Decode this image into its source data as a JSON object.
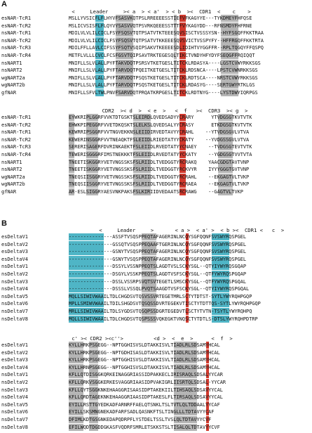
{
  "panelA": {
    "label": "A",
    "block1": {
      "header": " <     Leader     >< a  > < a'  > < b  ><  CDR1  <    c    >",
      "rows": [
        {
          "name": "esNAR-TcR1",
          "seq": "MSLLYVSICFLFLHYVFSASVKQTPSLRREEEESSTIEFVFKAGYYE---TYKDMEYFHFQSE"
        },
        {
          "name": "esNAR-TcR2",
          "seq": "MSLICVSISFLFLQYVYSASVVQTPSVRKQEEESSTTTFVYKAGYDD---RFNSMDYFHFRNE"
        },
        {
          "name": "nsNAR-TcR1",
          "seq": "MDILVLVLILCICLFSYFSQSVTQTPSATVTKTEEESQVSISCTVSSSYSN--HYFSGQFFKKTRAA"
        },
        {
          "name": "nsNAR-TcR2",
          "seq": "MDILVLVLILCICLFSYFSQSVTQTPSATVTKKEEESQVSVICTVSSPYFY--HFFRGQFFKKTRTA"
        },
        {
          "name": "nsNAR-TcR3",
          "seq": "MDILFFLLAVLCIFSSYFSQTVSQIPSAKVTKEEEESDLIDIHTVYGGFFR--RPLTQGQYFFQSPQ"
        },
        {
          "name": "nsNAR-TcR4",
          "seq": "METFLVLLLCVCLFCSFGSVTQIPSAVTRKTEGESQLTIKCTVNDYHFYDYFSEQGFFRQIQQT"
        },
        {
          "name": "nsNART1",
          "seq": "MNIFLLSLVLALLPYFTAKVDQTPSRSVTKETGESLTITCKLRDASYA----LGSTCVWYRKKSGS"
        },
        {
          "name": "nsNART2",
          "seq": "MNIFLLSLVLALLPYFTARVDQTPQEITKETGESLTITCKLRDSNCA----LPSTCVWNRKKSGS"
        },
        {
          "name": "wgNART2a",
          "seq": "MNIFLLSLVLALLPYFTARVDQTPSQSTKETGESLTITCKLRDTSCA----NRSTCVWYRKKSGS"
        },
        {
          "name": "wgNART2b",
          "seq": "MNIFLLSLVLALLPYFTARVDQTPSQSTKETGESLTITCKLRDASYG----SERTGWYRTKLGS"
        },
        {
          "name": "gfNAR",
          "seq": "MNIFLLSFVLTWLPNVFSARVDQTPRQATKRPGESLTITCKLRDTNYG----LYSTDWYIQRPGS"
        }
      ]
    },
    "block2": {
      "header": "           CDR2  >< d  >  < e  >   <  f   ><  CDR3  >< g  >",
      "rows": [
        {
          "name": "esNAR-TcR1",
          "seq": "EYWKRIPLGGRFVVKTDTGSKTSLEIRDLQVEDSADYYCRARY      YTVDGSGTKVTVTK"
        },
        {
          "name": "esNAR-TcR2",
          "seq": "EHWKPIPEGGRFVVETDKQSKTSLELKSLQVEDSALYYCRASY      ETKDGSGTKVTVTK"
        },
        {
          "name": "nsNAR-TcR1",
          "seq": "KEWRRIPSGGRFVVTNGVEKKNSLEIIDIRVEDTAVYYCRAHL    --YTVDGSGVLVTVA"
        },
        {
          "name": "nsNAR-TcR2",
          "seq": "KEWERINSGGRFVVTNEAQKTFSLEIIDLRIEDTATYYCKATY    --YVDGSSGVLVTVA"
        },
        {
          "name": "nsNAR-TcR3",
          "seq": "SERERISAGERFDVRINKAEKTFSLEIIDLRVEDTATYYCNAEY    --TVDGSGTEVTVTK"
        },
        {
          "name": "nsNAR-TcR4",
          "seq": "TEWERISGGGRFIMSTNEKKKTFSLEIIDLRVEDTATYYCKATY    --YGDGSGTVVTVTA"
        },
        {
          "name": "nsNART1",
          "seq": "TNEETISKGGRYVETVNGSSKSFSLRIIDLTVEDGGTYRCRAKQ    YAACGDGTAVTVNP"
        },
        {
          "name": "nsNART2",
          "seq": "TNEETISKGGRYVETVNGSSKSFSLRIIDLTVEDGGTYRCKVYR    IYYYGGGTGVTVNP"
        },
        {
          "name": "wgNART2a",
          "seq": "TNEQSIISGGRYVETVNGSSKSFSLRIIDLTVEDGGTYRCRAHL    --EKGAGTVLTVKP"
        },
        {
          "name": "wgNART2b",
          "seq": "TNEQSIISGGRYVETVNGSSKSFSLRIIDLTVEDGGTYRCRAEA    --EKGAGTVLTVKP"
        },
        {
          "name": "gfNAR",
          "seq": "AR-ESLSIGGRYAESVNKPAKSFSLKIRIIDVEDAATSRCRAWG    --GAGTVLTVKP"
        }
      ]
    }
  },
  "panelB": {
    "label": "B",
    "block1": {
      "header": "          <     Leader     >       < a >  < a' >  < b ><  CDR1 <   c  >",
      "rows": [
        {
          "name": "esDeltaV1",
          "seq": "---------------ASSFTVSQSPPEQTAFAGERINLNCQYSGFQQNFSVSWYRQSPGEL"
        },
        {
          "name": "esDeltaV2",
          "seq": "---------------GSSQTVSQSPPEQAAFTGERINLNCQYSGFQQNFSVSWYRQSPGEL"
        },
        {
          "name": "esDeltaV3",
          "seq": "---------------GSNYTVSQSPPEQTAFAGERINLNCQYSGFQQNFSVSWYRQSPGEL"
        },
        {
          "name": "esDeltaV4",
          "seq": "---------------GSNYTVSQSPPEQTAFAGERINLNCQYSGFQQNFSVSWYRQSPGEL"
        },
        {
          "name": "nsDeltaV1",
          "seq": "---------------DSSYLVSSNPPEQTSLAGDTVSLSCKYSGL--QTYIYWYRQSGQAP"
        },
        {
          "name": "nsDeltaV2",
          "seq": "---------------DSGYLVSSKPPEQTSLAGDTVSFSCKYSGL--QTFYWYRQSPGQAP"
        },
        {
          "name": "nsDeltaV3",
          "seq": "---------------DSSLVSSRPSVQTSVTEGETLSMSCKYSGL--QTFYWYRQSPGQAL"
        },
        {
          "name": "nsDeltaV4",
          "seq": "---------------DSSSLVSSQLPVQTSAAGDTVSFSCKYSGL--QTYIYWYRQSPGQAL"
        },
        {
          "name": "nsDeltaV5",
          "seq": "MQLLSIWIVWAAILTDLCHGDSVTQSVSSVRTEGETMRLSCTYTDTST-SYTLYWYRQHPGQP"
        },
        {
          "name": "nsDeltaV6",
          "seq": "MPLLSMIWVWAAILTDILSHGDSVTQSQSSDVRTEGEKVTISCTYTDTTQS-SYTLYWYRQHPGQP"
        },
        {
          "name": "nsDeltaV7",
          "seq": "MRLLSIWIVWAAILTDLSYGDSVTQSQPSSDGRTEGEDVTLSCTYTVTN-TSYTLYWYRQHPQ"
        },
        {
          "name": "nsDeltaV8",
          "seq": "MQLLSIWIVWAAILTDLCHGDSVTQSPSSSVQKEGKTVNQSCTYTDTLS-DTSLYWYRQHPDTRP"
        }
      ]
    },
    "block2": {
      "header": " c' >< CDR2 ><c''>          <d >  <  e  >      <  f  >",
      "rows": [
        {
          "name": "esDeltaV1",
          "seq": "KYLLHRKPSGEGG--NPTGGHISVSLDTAKKISVLTIADLRLSDSAMYHCAL"
        },
        {
          "name": "esDeltaV2",
          "seq": "KYLLHRKPSGEGG--NPTGDHISASLDTAKKISVLTIADLRLSDSAMYHCAL"
        },
        {
          "name": "esDeltaV3",
          "seq": "KYLLHRKPSGEGG--NPTGGHISVSLDTAKKISVLTIADLRLSDSAMYHCAL"
        },
        {
          "name": "esDeltaV4",
          "seq": "KYLLHRNPSGEGG--NPTGGHISVSLDTAKKISVLTIADLRLSDSAMYHCAL"
        },
        {
          "name": "nsDeltaV1",
          "seq": "KFLLQTDISGGKQRKEINAGGRIASSIDPAKKECLIRISRAQLSDSALYYCAR"
        },
        {
          "name": "nsDeltaV2",
          "seq": "KFLLQRKVSGGKERKESVAGGRIAASIDPVAKIGRLIISRTQLSDSAL-YYCAR"
        },
        {
          "name": "nsDeltaV3",
          "seq": "KFLLQYTSGGKNKEHAAGGRISAASIDPTAKEKIILTIHSAQLSDSAVYYCAL"
        },
        {
          "name": "nsDeltaV4",
          "seq": "KFLLQRDTAGEKNKEHAAGGRIAASIDPTAKESLFLTIRSAQLSDSAVYYCAL"
        },
        {
          "name": "nsDeltaV5",
          "seq": "EYILLRSTTGYEDKADFARNRFFAELQTSNKLTSLTVTLQLTDDAALYYCAF"
        },
        {
          "name": "nsDeltaV6",
          "seq": "EYILLSKSMNGNEKADFARFSADLQASNKFTSLTINGLLLTDTAVYYCAF"
        },
        {
          "name": "nsDeltaV7",
          "seq": "DFIMLKDTGSGNKEDAPQDRPFLYSTDELTSSLTVSLQLTDTAVYYCVF"
        },
        {
          "name": "nsDeltaV8",
          "seq": "EFILWQDTDGDDGKASFVQDRFSMRLETSKKSTSLTISALQLTDTAVYYCVF"
        }
      ]
    }
  }
}
